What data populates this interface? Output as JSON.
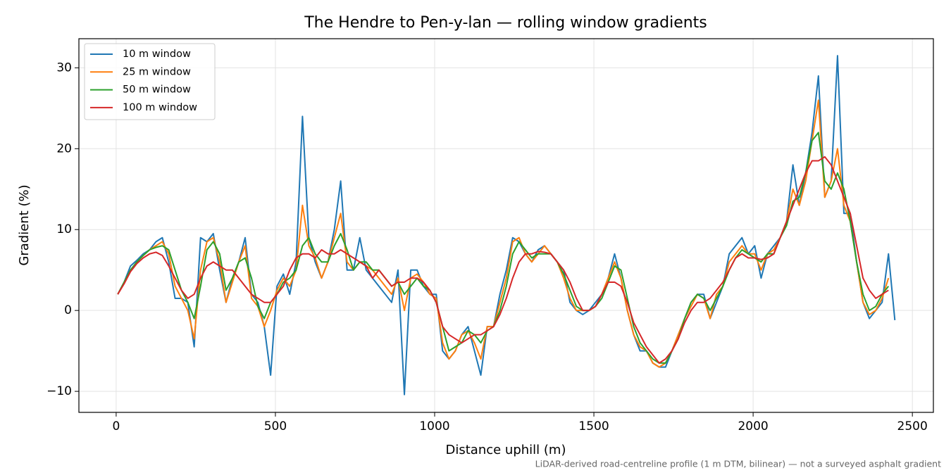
{
  "chart_data": {
    "type": "line",
    "title": "The Hendre to Pen-y-lan — rolling window gradients",
    "x_label": "Distance uphill (m)",
    "y_label": "Gradient (%)",
    "footnote": "LiDAR-derived road-centreline profile (1 m DTM, bilinear) — not a surveyed asphalt gradient",
    "x": [
      5,
      25,
      45,
      65,
      85,
      105,
      125,
      145,
      165,
      185,
      205,
      225,
      245,
      265,
      285,
      305,
      325,
      345,
      365,
      385,
      405,
      425,
      445,
      465,
      485,
      505,
      525,
      545,
      565,
      585,
      605,
      625,
      645,
      665,
      685,
      705,
      725,
      745,
      765,
      785,
      805,
      825,
      845,
      865,
      885,
      905,
      925,
      945,
      965,
      985,
      1005,
      1025,
      1045,
      1065,
      1085,
      1105,
      1125,
      1145,
      1165,
      1185,
      1205,
      1225,
      1245,
      1265,
      1285,
      1305,
      1325,
      1345,
      1365,
      1385,
      1405,
      1425,
      1445,
      1465,
      1485,
      1505,
      1525,
      1545,
      1565,
      1585,
      1605,
      1625,
      1645,
      1665,
      1685,
      1705,
      1725,
      1745,
      1765,
      1785,
      1805,
      1825,
      1845,
      1865,
      1885,
      1905,
      1925,
      1945,
      1965,
      1985,
      2005,
      2025,
      2045,
      2065,
      2085,
      2105,
      2125,
      2145,
      2165,
      2185,
      2205,
      2225,
      2245,
      2265,
      2285,
      2305,
      2325,
      2345,
      2365,
      2385,
      2405,
      2425,
      2445
    ],
    "series": [
      {
        "name": "10 m window",
        "color": "#1f77b4",
        "values": [
          2,
          3.5,
          5.5,
          6.2,
          7,
          7.5,
          8.5,
          9,
          6,
          1.5,
          1.5,
          1,
          -4.5,
          9,
          8.5,
          9.5,
          5,
          1,
          4,
          6,
          9,
          2,
          1,
          -2,
          -8,
          3,
          4.5,
          2,
          6,
          24,
          9,
          6,
          4,
          6,
          10,
          16,
          5,
          5,
          9,
          5,
          4,
          3,
          2,
          1,
          5,
          -10.4,
          5,
          5,
          3,
          2,
          2,
          -5,
          -6,
          -5,
          -3,
          -2,
          -5,
          -8,
          -2,
          -2,
          2,
          5,
          9,
          8.5,
          7,
          6,
          7.5,
          8,
          7,
          6,
          5,
          1,
          0,
          -0.5,
          0,
          1,
          2,
          4,
          7,
          4,
          0,
          -3,
          -5,
          -5,
          -6.5,
          -7,
          -7,
          -5,
          -3,
          -1,
          1,
          2,
          2,
          -1,
          1,
          3,
          7,
          8,
          9,
          7,
          8,
          4,
          7,
          8,
          9,
          11,
          18,
          13,
          17,
          22,
          29,
          14,
          16,
          31.5,
          12,
          12,
          6,
          1,
          -1,
          0,
          1,
          7,
          -1.2
        ]
      },
      {
        "name": "25 m window",
        "color": "#ff7f0e",
        "values": [
          2,
          3.4,
          5,
          6,
          6.8,
          7.5,
          8,
          8.5,
          7,
          3,
          1.5,
          0,
          -3.5,
          5,
          8.5,
          9,
          6,
          1,
          3.5,
          6,
          8,
          1.5,
          0.5,
          -2,
          0,
          2.5,
          4,
          3,
          5,
          13,
          8,
          6.5,
          4,
          6,
          9,
          12,
          6,
          5,
          6,
          5.5,
          5,
          4,
          3,
          2,
          4,
          0,
          4,
          4.5,
          3.5,
          2,
          1.5,
          -4,
          -6,
          -5,
          -3,
          -2.5,
          -4,
          -6,
          -2,
          -2,
          1,
          4,
          8.5,
          9,
          7,
          6,
          7,
          8,
          7,
          6,
          4,
          1.5,
          0,
          0,
          0,
          0.5,
          2,
          4,
          6,
          4,
          0,
          -3,
          -4.5,
          -5,
          -6.5,
          -7,
          -6.5,
          -5,
          -3,
          -1,
          0.5,
          2,
          1.5,
          -1,
          2,
          3,
          6,
          7,
          8,
          7,
          7,
          5,
          7,
          7.5,
          9,
          11,
          15,
          13,
          16,
          21,
          26,
          14,
          16,
          20,
          13,
          11,
          6,
          1,
          -0.5,
          0,
          1.5,
          4,
          null
        ]
      },
      {
        "name": "50 m window",
        "color": "#2ca02c",
        "values": [
          2,
          3.5,
          5,
          6,
          6.8,
          7.5,
          7.8,
          8,
          7.5,
          5,
          2.5,
          1,
          -1,
          3,
          7.5,
          8.5,
          7,
          2.5,
          4,
          6,
          6.5,
          4,
          0.5,
          -1,
          1,
          2,
          3.5,
          4,
          5,
          8,
          9,
          7,
          6,
          6,
          8,
          9.5,
          7.5,
          5,
          6,
          6,
          5,
          5,
          4,
          3,
          3.5,
          2,
          3,
          4,
          3,
          2.5,
          1,
          -2,
          -5,
          -4.5,
          -4,
          -2.5,
          -3,
          -4,
          -2.5,
          -2,
          0,
          3,
          7,
          8.5,
          7.5,
          6.5,
          7,
          7,
          7,
          6,
          4.5,
          2.5,
          0.5,
          0,
          0,
          0.5,
          1.5,
          3.5,
          5.5,
          5,
          1.5,
          -2,
          -4,
          -5,
          -6,
          -6.5,
          -6.5,
          -5,
          -3.5,
          -1,
          1,
          2,
          1.5,
          0,
          1.5,
          3,
          5,
          6.5,
          7.5,
          7,
          6.5,
          6,
          7,
          7,
          9,
          10.5,
          13.5,
          14,
          17,
          21,
          22,
          16,
          15,
          17,
          15,
          11,
          6,
          2,
          0,
          0.5,
          2,
          3,
          null
        ]
      },
      {
        "name": "100 m window",
        "color": "#d62728",
        "values": [
          2,
          3.3,
          4.8,
          5.8,
          6.5,
          7,
          7.2,
          6.8,
          5.5,
          4,
          2.5,
          1.5,
          2,
          4,
          5.5,
          6,
          5.5,
          5,
          5,
          4,
          3,
          2,
          1.5,
          1,
          1,
          2,
          3,
          5,
          6.5,
          7,
          7,
          6.5,
          7.5,
          7,
          7,
          7.5,
          7,
          6.5,
          6,
          5.5,
          4,
          5,
          4,
          3,
          3.5,
          3.5,
          4,
          4,
          3.5,
          2.5,
          1,
          -2,
          -3,
          -3.5,
          -4,
          -3.5,
          -3,
          -3,
          -2.5,
          -2,
          -0.5,
          1.5,
          4,
          6,
          7,
          7,
          7.3,
          7.2,
          7,
          6,
          5,
          3.5,
          1.5,
          0,
          0,
          0.5,
          2,
          3.5,
          3.5,
          3,
          1,
          -1.5,
          -3,
          -4.5,
          -5.5,
          -6.5,
          -6,
          -5,
          -3.5,
          -1.5,
          0,
          1,
          1,
          1.5,
          2.5,
          3.5,
          5,
          6.5,
          7,
          6.5,
          6.5,
          6.3,
          6.5,
          7,
          9,
          11,
          13,
          15,
          17,
          18.5,
          18.5,
          19,
          18,
          16,
          14,
          12,
          8,
          4,
          2.5,
          1.5,
          2,
          2.5,
          null
        ]
      }
    ],
    "xlim": [
      -117,
      2566
    ],
    "ylim": [
      -12.6,
      33.6
    ],
    "xticks": [
      0,
      500,
      1000,
      1500,
      2000,
      2500
    ],
    "yticks": [
      {
        "value": -10,
        "label": "−10"
      },
      0,
      10,
      20,
      30
    ],
    "grid": true,
    "legend": "upper-left"
  }
}
